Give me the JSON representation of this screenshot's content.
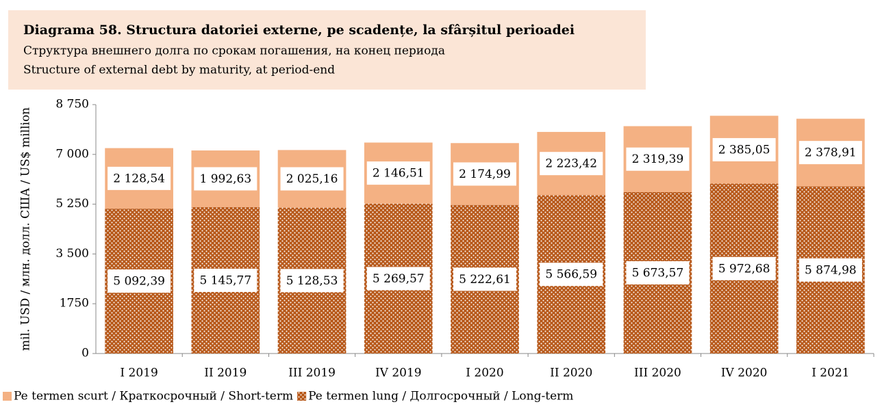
{
  "chart_data": {
    "type": "stacked_bar",
    "title": "Diagrama 58. Structura datoriei externe, pe scadențe, la sfârșitul perioadei",
    "subtitle_ru": "Структура внешнего долга по срокам погашения, на конец периода",
    "subtitle_en": "Structure of external debt by maturity, at period-end",
    "ylabel": "mil. USD / млн. долл. США / US$ million",
    "categories": [
      "I 2019",
      "II 2019",
      "III 2019",
      "IV 2019",
      "I 2020",
      "II 2020",
      "III 2020",
      "IV 2020",
      "I 2021"
    ],
    "series": [
      {
        "name": "Pe termen lung / Долгосрочный / Long-term",
        "color": "#b85a1c",
        "values": [
          5092.39,
          5145.77,
          5128.53,
          5269.57,
          5222.61,
          5566.59,
          5673.57,
          5972.68,
          5874.98
        ],
        "value_labels": [
          "5 092,39",
          "5 145,77",
          "5 128,53",
          "5 269,57",
          "5 222,61",
          "5 566,59",
          "5 673,57",
          "5 972,68",
          "5 874,98"
        ]
      },
      {
        "name": "Pe termen scurt / Краткосрочный / Short-term",
        "color": "#f4b183",
        "values": [
          2128.54,
          1992.63,
          2025.16,
          2146.51,
          2174.99,
          2223.42,
          2319.39,
          2385.05,
          2378.91
        ],
        "value_labels": [
          "2 128,54",
          "1 992,63",
          "2 025,16",
          "2 146,51",
          "2 174,99",
          "2 223,42",
          "2 319,39",
          "2 385,05",
          "2 378,91"
        ]
      }
    ],
    "ylim": [
      0,
      8750
    ],
    "yticks": [
      0,
      1750,
      {
        "value": 3500,
        "label": "3 500"
      },
      {
        "value": 5250,
        "label": "5 250"
      },
      {
        "value": 7000,
        "label": "7 000"
      },
      {
        "value": 8750,
        "label": "8 750"
      }
    ],
    "legend": "bottom-left"
  }
}
